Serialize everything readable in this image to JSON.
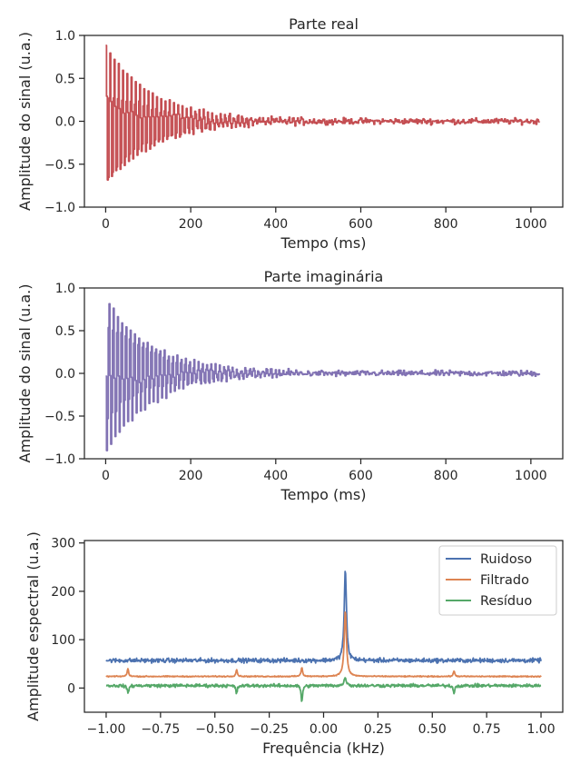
{
  "chart_data": [
    {
      "type": "line",
      "title": "Parte real",
      "xlabel": "Tempo (ms)",
      "ylabel": "Amplitude do sinal (u.a.)",
      "xlim": [
        -50,
        1075
      ],
      "ylim": [
        -1.0,
        1.0
      ],
      "xticks": [
        0,
        200,
        400,
        600,
        800,
        1000
      ],
      "yticks": [
        -1.0,
        -0.5,
        0.0,
        0.5,
        1.0
      ],
      "series": [
        {
          "name": "Parte real",
          "color": "#c44e52",
          "description": "decaying oscillation, step-held samples",
          "x_start": 0,
          "x_end": 1020,
          "initial_amplitude": 0.88,
          "decay_time_ms": 110,
          "noise_amplitude": 0.03
        }
      ]
    },
    {
      "type": "line",
      "title": "Parte imaginária",
      "xlabel": "Tempo (ms)",
      "ylabel": "Amplitude do sinal (u.a.)",
      "xlim": [
        -50,
        1075
      ],
      "ylim": [
        -1.0,
        1.0
      ],
      "xticks": [
        0,
        200,
        400,
        600,
        800,
        1000
      ],
      "yticks": [
        -1.0,
        -0.5,
        0.0,
        0.5,
        1.0
      ],
      "series": [
        {
          "name": "Parte imaginária",
          "color": "#8172b3",
          "description": "decaying oscillation, step-held samples",
          "x_start": 0,
          "x_end": 1020,
          "initial_amplitude": 0.95,
          "decay_time_ms": 110,
          "noise_amplitude": 0.03
        }
      ]
    },
    {
      "type": "line",
      "title": "",
      "xlabel": "Frequência (kHz)",
      "ylabel": "Amplitude espectral (u.a.)",
      "xlim": [
        -1.1,
        1.1
      ],
      "ylim": [
        -50,
        305
      ],
      "xticks": [
        -1.0,
        -0.75,
        -0.5,
        -0.25,
        0.0,
        0.25,
        0.5,
        0.75,
        1.0
      ],
      "yticks": [
        0,
        100,
        200,
        300
      ],
      "legend_position": "top-right",
      "series": [
        {
          "name": "Ruidoso",
          "color": "#4c72b0",
          "baseline": 57,
          "noise": 4,
          "peak_x": 0.1,
          "peak_y": 245
        },
        {
          "name": "Filtrado",
          "color": "#dd8452",
          "baseline": 24,
          "noise": 1,
          "peak_x": 0.1,
          "peak_y": 160,
          "minor_peaks": [
            [
              -0.9,
              40
            ],
            [
              -0.4,
              38
            ],
            [
              -0.1,
              43
            ],
            [
              0.6,
              35
            ]
          ]
        },
        {
          "name": "Resíduo",
          "color": "#55a868",
          "baseline": 5,
          "noise": 3,
          "peak_x": 0.1,
          "peak_y": 22,
          "minor_dips": [
            [
              -0.9,
              -12
            ],
            [
              -0.4,
              -12
            ],
            [
              -0.1,
              -28
            ],
            [
              0.6,
              -10
            ]
          ]
        }
      ]
    }
  ]
}
